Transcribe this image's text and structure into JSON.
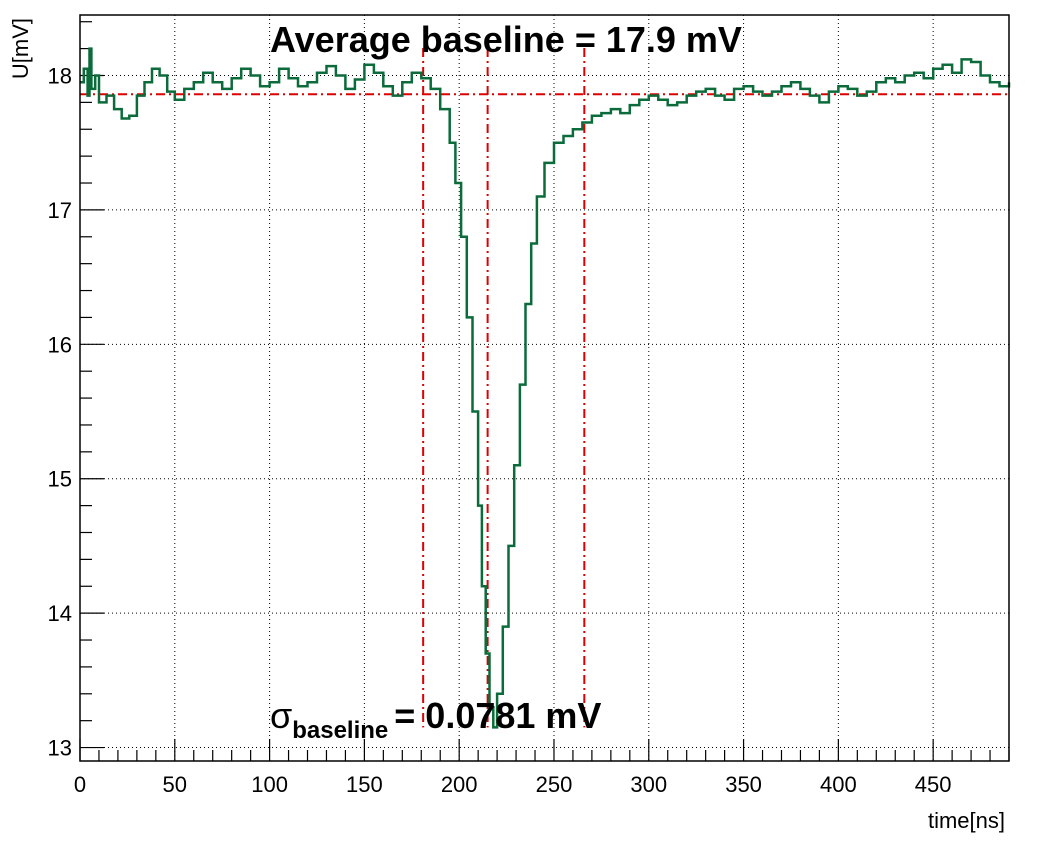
{
  "chart_data": {
    "type": "line",
    "title": "",
    "xlabel": "time[ns]",
    "ylabel": "U[mV]",
    "xlim": [
      0,
      490
    ],
    "ylim": [
      12.9,
      18.45
    ],
    "x_ticks": [
      0,
      50,
      100,
      150,
      200,
      250,
      300,
      350,
      400,
      450
    ],
    "y_ticks": [
      13,
      14,
      15,
      16,
      17,
      18
    ],
    "grid": true,
    "series": [
      {
        "color": "#0b6b3a",
        "step": true,
        "points": [
          [
            0,
            17.95
          ],
          [
            2,
            18.05
          ],
          [
            4,
            17.85
          ],
          [
            5,
            18.2
          ],
          [
            6,
            17.9
          ],
          [
            8,
            18.0
          ],
          [
            10,
            17.8
          ],
          [
            14,
            17.85
          ],
          [
            18,
            17.75
          ],
          [
            22,
            17.68
          ],
          [
            26,
            17.7
          ],
          [
            30,
            17.85
          ],
          [
            34,
            17.95
          ],
          [
            38,
            18.05
          ],
          [
            42,
            18.0
          ],
          [
            46,
            17.88
          ],
          [
            50,
            17.82
          ],
          [
            55,
            17.9
          ],
          [
            60,
            17.95
          ],
          [
            65,
            18.02
          ],
          [
            70,
            17.95
          ],
          [
            75,
            17.9
          ],
          [
            80,
            17.98
          ],
          [
            85,
            18.05
          ],
          [
            90,
            18.0
          ],
          [
            95,
            17.92
          ],
          [
            100,
            17.95
          ],
          [
            105,
            18.05
          ],
          [
            110,
            17.98
          ],
          [
            115,
            17.92
          ],
          [
            120,
            17.95
          ],
          [
            125,
            18.02
          ],
          [
            130,
            18.07
          ],
          [
            135,
            18.0
          ],
          [
            140,
            17.9
          ],
          [
            145,
            17.97
          ],
          [
            150,
            18.08
          ],
          [
            155,
            18.02
          ],
          [
            160,
            17.92
          ],
          [
            165,
            17.85
          ],
          [
            170,
            17.95
          ],
          [
            175,
            18.02
          ],
          [
            180,
            17.98
          ],
          [
            185,
            17.9
          ],
          [
            190,
            17.75
          ],
          [
            195,
            17.5
          ],
          [
            198,
            17.2
          ],
          [
            201,
            16.8
          ],
          [
            204,
            16.2
          ],
          [
            207,
            15.5
          ],
          [
            210,
            14.8
          ],
          [
            212,
            14.2
          ],
          [
            214,
            13.7
          ],
          [
            216,
            13.3
          ],
          [
            218,
            13.15
          ],
          [
            220,
            13.4
          ],
          [
            223,
            13.9
          ],
          [
            226,
            14.5
          ],
          [
            229,
            15.1
          ],
          [
            232,
            15.7
          ],
          [
            235,
            16.3
          ],
          [
            238,
            16.75
          ],
          [
            241,
            17.1
          ],
          [
            245,
            17.35
          ],
          [
            250,
            17.5
          ],
          [
            255,
            17.55
          ],
          [
            260,
            17.6
          ],
          [
            265,
            17.65
          ],
          [
            270,
            17.7
          ],
          [
            275,
            17.72
          ],
          [
            280,
            17.75
          ],
          [
            285,
            17.72
          ],
          [
            290,
            17.78
          ],
          [
            295,
            17.82
          ],
          [
            300,
            17.85
          ],
          [
            305,
            17.82
          ],
          [
            310,
            17.78
          ],
          [
            315,
            17.8
          ],
          [
            320,
            17.85
          ],
          [
            325,
            17.88
          ],
          [
            330,
            17.9
          ],
          [
            335,
            17.85
          ],
          [
            340,
            17.82
          ],
          [
            345,
            17.9
          ],
          [
            350,
            17.92
          ],
          [
            355,
            17.88
          ],
          [
            360,
            17.85
          ],
          [
            365,
            17.88
          ],
          [
            370,
            17.92
          ],
          [
            375,
            17.95
          ],
          [
            380,
            17.9
          ],
          [
            385,
            17.85
          ],
          [
            390,
            17.8
          ],
          [
            395,
            17.88
          ],
          [
            400,
            17.92
          ],
          [
            405,
            17.9
          ],
          [
            410,
            17.85
          ],
          [
            415,
            17.88
          ],
          [
            420,
            17.95
          ],
          [
            425,
            17.98
          ],
          [
            430,
            17.95
          ],
          [
            435,
            18.0
          ],
          [
            440,
            18.02
          ],
          [
            445,
            17.98
          ],
          [
            450,
            18.05
          ],
          [
            455,
            18.08
          ],
          [
            460,
            18.02
          ],
          [
            465,
            18.12
          ],
          [
            470,
            18.1
          ],
          [
            475,
            18.0
          ],
          [
            480,
            17.95
          ],
          [
            485,
            17.92
          ],
          [
            490,
            17.95
          ]
        ]
      }
    ],
    "reference_lines": {
      "color": "#dd0000",
      "baseline_y": 17.86,
      "vertical_x": [
        181,
        215,
        266
      ]
    },
    "annotations": {
      "average_baseline": "Average baseline =  17.9 mV",
      "sigma_symbol": "σ",
      "sigma_subscript": "baseline",
      "sigma_value": "= 0.0781 mV"
    }
  }
}
